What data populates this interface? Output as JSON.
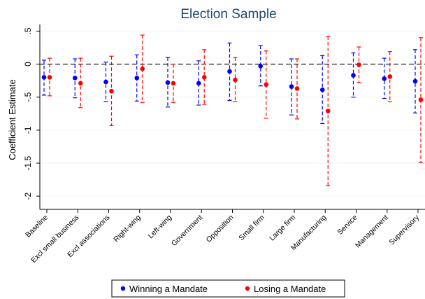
{
  "chart_data": {
    "type": "scatter",
    "title": "Election Sample",
    "ylabel": "Coefficient Estimate",
    "xlabel": "",
    "ylim": [
      -2.2,
      0.6
    ],
    "yticks": [
      0.5,
      0,
      -0.5,
      -1,
      -1.5,
      -2
    ],
    "ytick_labels": [
      ".5",
      "0",
      "-.5",
      "-1",
      "-1.5",
      "-2"
    ],
    "reference_line": 0,
    "categories": [
      "Baseline",
      "Excl small business",
      "Excl associations",
      "Right-wing",
      "Left-wing",
      "Government",
      "Opposition",
      "Small firm",
      "Large firm",
      "Manufacturing",
      "Service",
      "Management",
      "Supervisory"
    ],
    "series": [
      {
        "name": "Winning a Mandate",
        "color": "#0000ff",
        "estimates": [
          -0.2,
          -0.21,
          -0.27,
          -0.21,
          -0.28,
          -0.29,
          -0.11,
          -0.03,
          -0.34,
          -0.39,
          -0.17,
          -0.22,
          -0.26
        ],
        "ci_low": [
          -0.47,
          -0.51,
          -0.57,
          -0.56,
          -0.65,
          -0.62,
          -0.55,
          -0.33,
          -0.77,
          -0.9,
          -0.5,
          -0.52,
          -0.74
        ],
        "ci_high": [
          0.06,
          0.08,
          0.03,
          0.14,
          0.1,
          0.05,
          0.32,
          0.28,
          0.08,
          0.13,
          0.17,
          0.09,
          0.22
        ]
      },
      {
        "name": "Losing a Mandate",
        "color": "#ff0000",
        "estimates": [
          -0.2,
          -0.29,
          -0.41,
          -0.07,
          -0.29,
          -0.2,
          -0.24,
          -0.31,
          -0.37,
          -0.71,
          -0.01,
          -0.19,
          -0.54
        ],
        "ci_low": [
          -0.48,
          -0.66,
          -0.93,
          -0.58,
          -0.58,
          -0.61,
          -0.57,
          -0.82,
          -0.83,
          -1.84,
          -0.28,
          -0.57,
          -1.49
        ],
        "ci_high": [
          0.09,
          0.09,
          0.12,
          0.44,
          0.0,
          0.22,
          0.1,
          0.2,
          0.08,
          0.42,
          0.26,
          0.19,
          0.4
        ]
      }
    ],
    "legend_position": "bottom"
  }
}
